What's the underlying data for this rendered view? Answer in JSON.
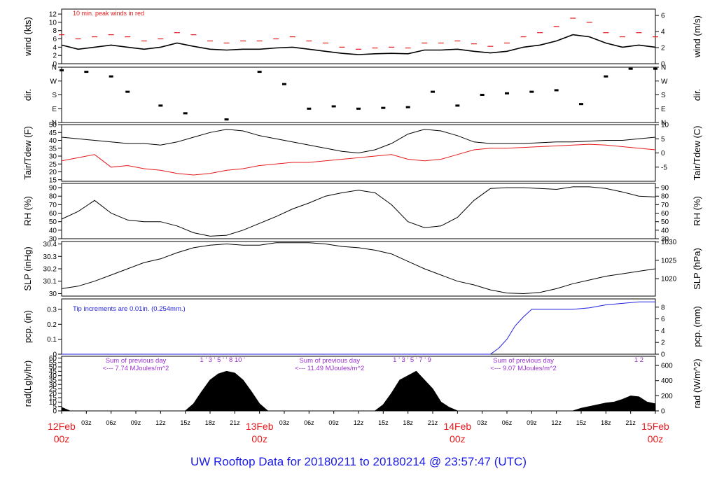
{
  "caption": "UW Rooftop Data for 20180211  to  20180214 @ 23:57:47  (UTC)",
  "colors": {
    "red": "#e41a1c",
    "blue": "#1f1fe0",
    "purple": "#9b30d0",
    "black": "#000000",
    "caption": "#1a1ae6"
  },
  "chart_data": [
    {
      "type": "line",
      "name": "wind",
      "ylabel_left": "wind (kts)",
      "ylabel_right": "wind (m/s)",
      "ylim": [
        0,
        13.2
      ],
      "left_ticks": [
        0,
        2,
        4,
        6,
        8,
        10,
        12
      ],
      "right_ticks": [
        0,
        2,
        4,
        6
      ],
      "annotation": "10 min. peak winds in red",
      "series": [
        {
          "name": "wind speed (kts)",
          "color": "black",
          "x": [
            0,
            2,
            4,
            6,
            8,
            10,
            12,
            14,
            16,
            18,
            20,
            22,
            24,
            26,
            28,
            30,
            32,
            34,
            36,
            38,
            40,
            42,
            44,
            46,
            48,
            50,
            52,
            54,
            56,
            58,
            60,
            62,
            64,
            66,
            68,
            70,
            72
          ],
          "y": [
            4.5,
            3.5,
            4,
            4.5,
            4,
            3.5,
            4,
            5,
            4.2,
            3.5,
            3.3,
            3.5,
            3.5,
            3.8,
            4,
            3.5,
            3,
            2.5,
            2.2,
            2.4,
            2.5,
            2.4,
            3.3,
            3.3,
            3.5,
            3,
            2.6,
            3,
            4,
            4.5,
            5.5,
            7,
            6.5,
            5,
            4,
            4.5,
            4
          ]
        },
        {
          "name": "10 min. peak (kts)",
          "color": "red",
          "x": [
            0,
            2,
            4,
            6,
            8,
            10,
            12,
            14,
            16,
            18,
            20,
            22,
            24,
            26,
            28,
            30,
            32,
            34,
            36,
            38,
            40,
            42,
            44,
            46,
            48,
            50,
            52,
            54,
            56,
            58,
            60,
            62,
            64,
            66,
            68,
            70,
            72
          ],
          "y": [
            7,
            6,
            6.5,
            7,
            6.5,
            5.5,
            6,
            7.5,
            7,
            5.5,
            5,
            5.5,
            5.5,
            6,
            6.5,
            5.5,
            5,
            4,
            3.5,
            3.8,
            4,
            3.8,
            5,
            5,
            5.5,
            4.8,
            4.2,
            5,
            6.5,
            7.5,
            9,
            11,
            10,
            7.5,
            6.5,
            7.5,
            6.5
          ]
        }
      ]
    },
    {
      "type": "scatter",
      "name": "wind direction",
      "ylabel_left": "dir.",
      "ylabel_right": "dir.",
      "ylim": [
        0,
        360
      ],
      "tick_labels": [
        "N",
        "E",
        "S",
        "W",
        "N"
      ],
      "tick_values": [
        0,
        90,
        180,
        270,
        360
      ],
      "series": [
        {
          "name": "direction (deg)",
          "color": "black",
          "x": [
            0,
            3,
            6,
            8,
            12,
            15,
            20,
            24,
            27,
            30,
            33,
            36,
            39,
            42,
            45,
            48,
            51,
            54,
            57,
            60,
            63,
            66,
            69,
            72
          ],
          "y": [
            340,
            330,
            300,
            200,
            110,
            60,
            20,
            330,
            250,
            90,
            105,
            90,
            95,
            100,
            200,
            110,
            180,
            190,
            200,
            210,
            120,
            300,
            350,
            350
          ]
        }
      ]
    },
    {
      "type": "line",
      "name": "temperature",
      "ylabel_left": "Tair/Tdew (F)",
      "ylabel_right": "Tair/Tdew (C)",
      "ylim": [
        14,
        50
      ],
      "left_ticks": [
        15,
        20,
        25,
        30,
        35,
        40,
        45,
        50
      ],
      "right_ticks": [
        -5,
        0,
        5,
        10
      ],
      "series": [
        {
          "name": "Tair (F)",
          "color": "black",
          "x": [
            0,
            2,
            4,
            6,
            8,
            10,
            12,
            14,
            16,
            18,
            20,
            22,
            24,
            26,
            28,
            30,
            32,
            34,
            36,
            38,
            40,
            42,
            44,
            46,
            48,
            50,
            52,
            54,
            56,
            58,
            60,
            62,
            64,
            66,
            68,
            70,
            72
          ],
          "y": [
            42,
            41,
            40,
            39,
            38,
            38,
            37,
            39,
            42,
            45,
            47,
            46,
            43,
            41,
            39,
            37,
            35,
            33,
            32,
            34,
            38,
            44,
            47,
            46,
            43,
            39,
            38,
            38,
            38,
            38.5,
            39,
            39,
            39.5,
            40,
            40,
            41,
            42
          ]
        },
        {
          "name": "Tdew (F)",
          "color": "red",
          "x": [
            0,
            2,
            4,
            6,
            8,
            10,
            12,
            14,
            16,
            18,
            20,
            22,
            24,
            26,
            28,
            30,
            32,
            34,
            36,
            38,
            40,
            42,
            44,
            46,
            48,
            50,
            52,
            54,
            56,
            58,
            60,
            62,
            64,
            66,
            68,
            70,
            72
          ],
          "y": [
            27,
            29,
            31,
            23,
            24,
            22,
            21,
            19,
            18,
            19,
            21,
            22,
            24,
            25,
            26,
            26,
            27,
            28,
            29,
            30,
            31,
            28,
            27,
            28,
            31,
            34,
            35,
            35,
            35.5,
            36,
            36.5,
            37,
            37.5,
            37,
            36,
            35,
            34
          ]
        }
      ]
    },
    {
      "type": "line",
      "name": "relative humidity",
      "ylabel_left": "RH (%)",
      "ylabel_right": "RH (%)",
      "ylim": [
        30,
        95
      ],
      "left_ticks": [
        30,
        40,
        50,
        60,
        70,
        80,
        90
      ],
      "right_ticks": [
        30,
        40,
        50,
        60,
        70,
        80,
        90
      ],
      "series": [
        {
          "name": "RH (%)",
          "color": "black",
          "x": [
            0,
            2,
            4,
            6,
            8,
            10,
            12,
            14,
            16,
            18,
            20,
            22,
            24,
            26,
            28,
            30,
            32,
            34,
            36,
            38,
            40,
            42,
            44,
            46,
            48,
            50,
            52,
            54,
            56,
            58,
            60,
            62,
            64,
            66,
            68,
            70,
            72
          ],
          "y": [
            53,
            62,
            75,
            60,
            52,
            50,
            50,
            45,
            37,
            33,
            34,
            40,
            48,
            56,
            65,
            72,
            80,
            84,
            87,
            84,
            70,
            50,
            43,
            45,
            55,
            75,
            89,
            90,
            90,
            89,
            88,
            91,
            91,
            89,
            85,
            80,
            79
          ]
        }
      ]
    },
    {
      "type": "line",
      "name": "sea level pressure",
      "ylabel_left": "SLP (inHg)",
      "ylabel_right": "SLP (hPa)",
      "ylim": [
        29.98,
        30.42
      ],
      "left_ticks": [
        30.0,
        30.1,
        30.2,
        30.3,
        30.4
      ],
      "right_ticks": [
        1020,
        1025,
        1030
      ],
      "series": [
        {
          "name": "SLP (inHg)",
          "color": "black",
          "x": [
            0,
            2,
            4,
            6,
            8,
            10,
            12,
            14,
            16,
            18,
            20,
            22,
            24,
            26,
            28,
            30,
            32,
            34,
            36,
            38,
            40,
            42,
            44,
            46,
            48,
            50,
            52,
            54,
            56,
            58,
            60,
            62,
            64,
            66,
            68,
            70,
            72
          ],
          "y": [
            30.04,
            30.06,
            30.1,
            30.15,
            30.2,
            30.25,
            30.28,
            30.33,
            30.37,
            30.39,
            30.4,
            30.39,
            30.39,
            30.41,
            30.41,
            30.41,
            30.4,
            30.38,
            30.37,
            30.35,
            30.32,
            30.26,
            30.2,
            30.15,
            30.1,
            30.07,
            30.03,
            30.005,
            30.0,
            30.01,
            30.04,
            30.08,
            30.11,
            30.14,
            30.16,
            30.18,
            30.2
          ]
        }
      ]
    },
    {
      "type": "area",
      "name": "precipitation",
      "ylabel_left": "pcp. (in)",
      "ylabel_right": "pcp. (mm)",
      "ylim": [
        0,
        0.37
      ],
      "left_ticks": [
        0.0,
        0.1,
        0.2,
        0.3
      ],
      "right_ticks": [
        0,
        2,
        4,
        6,
        8
      ],
      "annotation": "Tip increments are 0.01in. (0.254mm.)",
      "series": [
        {
          "name": "accumulated precip (in)",
          "color": "blue",
          "x": [
            0,
            52,
            53,
            54,
            55,
            56,
            57,
            58,
            60,
            62,
            64,
            66,
            68,
            70,
            72
          ],
          "y": [
            0,
            0,
            0.04,
            0.1,
            0.19,
            0.25,
            0.3,
            0.3,
            0.3,
            0.3,
            0.31,
            0.33,
            0.34,
            0.35,
            0.35
          ]
        }
      ]
    },
    {
      "type": "area",
      "name": "solar radiation",
      "ylabel_left": "rad(Lgly/hr)",
      "ylabel_right": "rad (W/m^2)",
      "ylim": [
        0,
        62
      ],
      "left_ticks": [
        0,
        5,
        10,
        15,
        20,
        25,
        30,
        35,
        40,
        45,
        50,
        55,
        60
      ],
      "right_ticks": [
        0,
        200,
        400,
        600
      ],
      "annotations": [
        {
          "line1": "Sum of previous day",
          "line2": "<--- 7.74 MJoules/m^2",
          "hour": 9
        },
        {
          "line1": "Sum of previous day",
          "line2": "<--- 11.49 MJoules/m^2",
          "hour": 32.5
        },
        {
          "line1": "Sum of previous day",
          "line2": "<--- 9.07 MJoules/m^2",
          "hour": 56
        }
      ],
      "marker_groups": [
        {
          "text": "1 ' 3 ' 5 ' ' 8 10 '",
          "hour": 19.5
        },
        {
          "text": "1 ' 3 ' 5 ' 7 ' 9",
          "hour": 42.5
        },
        {
          "text": "1   2",
          "hour": 70
        }
      ],
      "series": [
        {
          "name": "radiation (Lgly/hr)",
          "color": "black",
          "x": [
            0,
            1,
            15,
            16,
            17,
            18,
            19,
            20,
            21,
            22,
            23,
            24,
            25,
            38,
            39,
            40,
            41,
            42,
            43,
            44,
            45,
            46,
            47,
            48,
            62,
            63,
            64,
            65,
            66,
            67,
            68,
            69,
            70,
            71,
            72
          ],
          "y": [
            4,
            0,
            0,
            8,
            22,
            35,
            42,
            45,
            43,
            35,
            22,
            8,
            0,
            0,
            7,
            20,
            35,
            40,
            45,
            35,
            25,
            10,
            4,
            0,
            0,
            3,
            5,
            7,
            9,
            10,
            13,
            17,
            16,
            10,
            8
          ]
        }
      ]
    }
  ],
  "x_axis": {
    "hour_ticks": [
      0,
      3,
      6,
      9,
      12,
      15,
      18,
      21,
      24,
      27,
      30,
      33,
      36,
      39,
      42,
      45,
      48,
      51,
      54,
      57,
      60,
      63,
      66,
      69,
      72
    ],
    "hour_labels": [
      "",
      "03z",
      "06z",
      "09z",
      "12z",
      "15z",
      "18z",
      "21z",
      "",
      "03z",
      "06z",
      "09z",
      "12z",
      "15z",
      "18z",
      "21z",
      "",
      "03z",
      "06z",
      "09z",
      "12z",
      "15z",
      "18z",
      "21z",
      ""
    ],
    "date_labels": [
      {
        "hour": 0,
        "line1": "12Feb",
        "line2": "00z"
      },
      {
        "hour": 24,
        "line1": "13Feb",
        "line2": "00z"
      },
      {
        "hour": 48,
        "line1": "14Feb",
        "line2": "00z"
      },
      {
        "hour": 72,
        "line1": "15Feb",
        "line2": "00z"
      }
    ]
  }
}
